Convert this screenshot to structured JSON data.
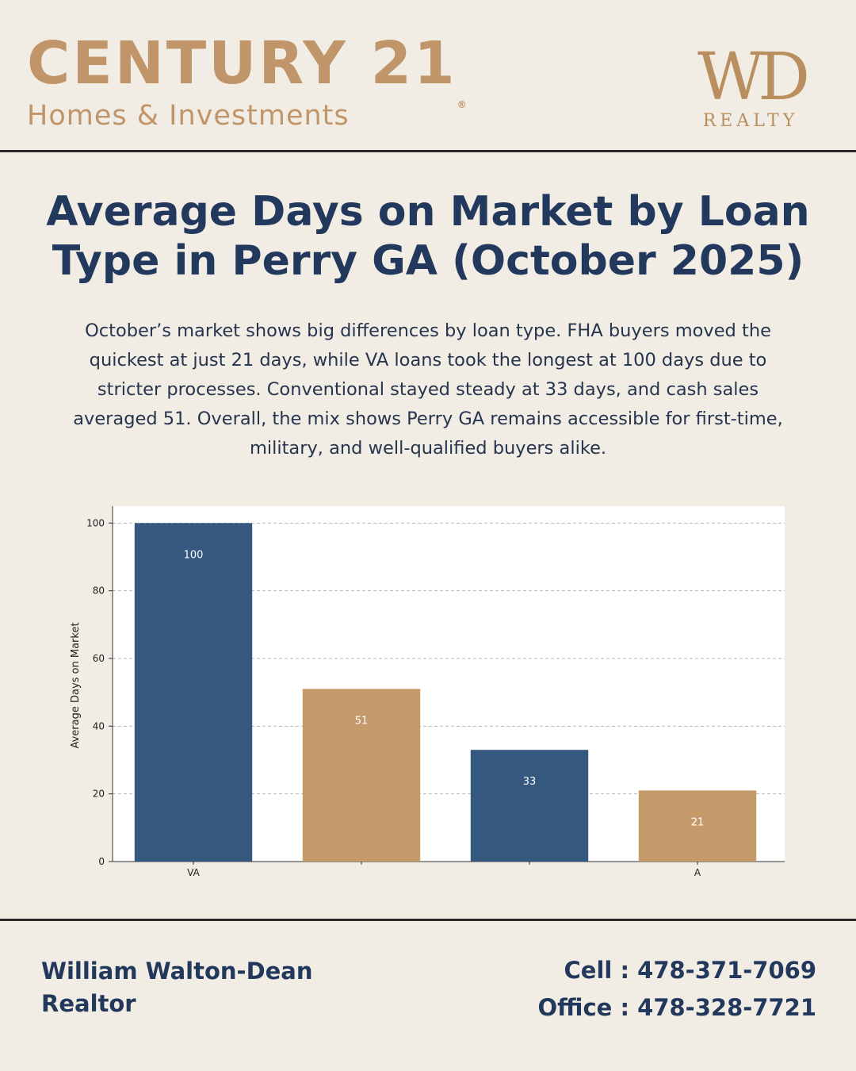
{
  "header": {
    "brand_name": "CENTURY 21",
    "brand_registered": "®",
    "brand_sub": "Homes & Investments",
    "partner_logo_mark": "WD",
    "partner_logo_text": "REALTY"
  },
  "main": {
    "title_line1": "Average Days on Market by Loan",
    "title_line2": "Type in Perry GA (October 2025)",
    "description": "October’s market shows big differences by loan type. FHA buyers moved the quickest at just 21 days, while VA loans took the longest at 100 days due to stricter processes. Conventional stayed steady at 33 days, and cash sales averaged 51. Overall, the mix shows Perry GA remains accessible for first-time, military, and well-qualified buyers alike."
  },
  "chart_data": {
    "type": "bar",
    "categories": [
      "VA",
      "",
      "",
      "A"
    ],
    "values": [
      100,
      51,
      33,
      21
    ],
    "value_labels": [
      "100",
      "51",
      "33",
      "21"
    ],
    "bar_colors": [
      "#35587f",
      "#c59a6a",
      "#35587f",
      "#c59a6a"
    ],
    "title": "",
    "xlabel": "",
    "ylabel": "Average Days on Market",
    "ylim": [
      0,
      105
    ],
    "yticks": [
      0,
      20,
      40,
      60,
      80,
      100
    ],
    "grid": true
  },
  "footer": {
    "agent_name": "William Walton-Dean",
    "agent_role": "Realtor",
    "cell": "Cell : 478-371-7069",
    "office": "Office : 478-328-7721"
  },
  "colors": {
    "background": "#f1ede4",
    "navy": "#22385c",
    "gold": "#c1956a"
  }
}
